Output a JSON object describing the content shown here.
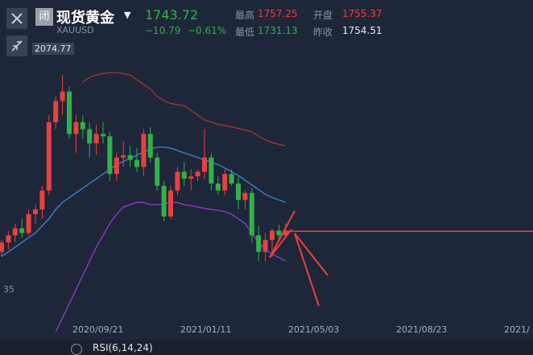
{
  "header": {
    "status_badge": "闭",
    "name": "现货黄金",
    "symbol": "XAUUSD",
    "price": "1743.72",
    "change": "−10.79",
    "change_pct": "−0.61%",
    "stats": [
      {
        "label": "最高",
        "value": "1757.25"
      },
      {
        "label": "开盘",
        "value": "1755.37"
      },
      {
        "label": "最低",
        "value": "1731.13"
      },
      {
        "label": "昨收",
        "value": "1754.51"
      }
    ]
  },
  "chart_data": {
    "type": "candlestick",
    "ylim": [
      1500,
      2200
    ],
    "high_label": "2074.77",
    "left_axis_label": "35",
    "x_labels": [
      "2020/09/21",
      "2021/01/11",
      "2021/05/03",
      "2021/08/23",
      "2021/"
    ],
    "open": [
      1700,
      1720,
      1735,
      1750,
      1740,
      1780,
      1790,
      1830,
      1975,
      2020,
      2040,
      1950,
      1975,
      1960,
      1930,
      1950,
      1945,
      1865,
      1900,
      1905,
      1895,
      1880,
      1950,
      1900,
      1840,
      1775,
      1830,
      1870,
      1855,
      1860,
      1870,
      1900,
      1845,
      1830,
      1865,
      1845,
      1810,
      1825,
      1735,
      1700,
      1725,
      1745,
      1735
    ],
    "high": [
      1725,
      1745,
      1760,
      1770,
      1790,
      1800,
      1840,
      1990,
      2030,
      2074.77,
      2050,
      1990,
      1990,
      1975,
      1970,
      1975,
      1955,
      1910,
      1935,
      1925,
      1920,
      1960,
      1965,
      1910,
      1850,
      1840,
      1880,
      1890,
      1875,
      1875,
      1960,
      1910,
      1860,
      1875,
      1875,
      1860,
      1830,
      1835,
      1755,
      1740,
      1750,
      1757.25,
      1760
    ],
    "low": [
      1690,
      1705,
      1720,
      1730,
      1735,
      1760,
      1770,
      1820,
      1960,
      1990,
      1940,
      1910,
      1940,
      1900,
      1905,
      1930,
      1850,
      1850,
      1880,
      1880,
      1870,
      1860,
      1890,
      1830,
      1765,
      1770,
      1820,
      1840,
      1830,
      1850,
      1855,
      1830,
      1820,
      1820,
      1840,
      1790,
      1790,
      1720,
      1680,
      1680,
      1690,
      1725,
      1731.13
    ],
    "close": [
      1720,
      1735,
      1750,
      1740,
      1780,
      1790,
      1830,
      1975,
      2020,
      2040,
      1950,
      1975,
      1960,
      1930,
      1950,
      1945,
      1865,
      1900,
      1905,
      1895,
      1880,
      1950,
      1900,
      1840,
      1775,
      1830,
      1870,
      1855,
      1860,
      1870,
      1900,
      1845,
      1830,
      1865,
      1845,
      1810,
      1825,
      1735,
      1700,
      1725,
      1745,
      1735,
      1743.72
    ],
    "up_color": "#e8413f",
    "down_color": "#2fb24a",
    "last_price_color": "#e8413f",
    "series": [
      {
        "color": "#b0392f",
        "values": [
          null,
          null,
          null,
          null,
          null,
          null,
          null,
          null,
          null,
          null,
          null,
          null,
          2060,
          2070,
          2075,
          2078,
          2080,
          2080,
          2078,
          2075,
          2065,
          2055,
          2045,
          2030,
          2020,
          2015,
          2012,
          2010,
          2000,
          1990,
          1980,
          1975,
          1970,
          1968,
          1965,
          1962,
          1958,
          1955,
          1945,
          1938,
          1932,
          1928,
          1925
        ]
      },
      {
        "color": "#3d8fe0",
        "values": [
          1690,
          1700,
          1710,
          1720,
          1730,
          1740,
          1755,
          1770,
          1790,
          1805,
          1815,
          1825,
          1835,
          1845,
          1855,
          1865,
          1875,
          1885,
          1892,
          1898,
          1905,
          1912,
          1918,
          1922,
          1922,
          1920,
          1915,
          1910,
          1905,
          1900,
          1895,
          1890,
          1885,
          1878,
          1870,
          1862,
          1852,
          1842,
          1832,
          1822,
          1815,
          1810,
          1805
        ]
      },
      {
        "color": "#9b3fd8",
        "values": [
          null,
          null,
          null,
          null,
          null,
          null,
          null,
          null,
          1530,
          1560,
          1590,
          1620,
          1650,
          1680,
          1710,
          1735,
          1760,
          1780,
          1795,
          1800,
          1805,
          1805,
          1800,
          1800,
          1802,
          1805,
          1805,
          1800,
          1798,
          1795,
          1792,
          1790,
          1788,
          1785,
          1780,
          1770,
          1760,
          1740,
          1720,
          1705,
          1695,
          1688,
          1680
        ]
      }
    ]
  },
  "footer": {
    "indicator": "RSI(6,14,24)"
  }
}
